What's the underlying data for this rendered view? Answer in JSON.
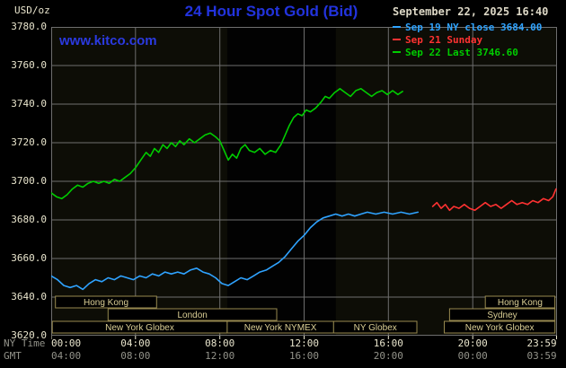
{
  "header": {
    "units_label": "USD/oz",
    "title": "24 Hour Spot Gold (Bid)",
    "watermark": "www.kitco.com",
    "datetime": "September 22, 2025 16:40"
  },
  "colors": {
    "title": "#2233dd",
    "watermark": "#2b3ae0",
    "axis_text": "#e9e5cd",
    "axis_dim": "#93938a",
    "date_text": "#ddd8c6",
    "background": "#000000"
  },
  "legend": [
    {
      "label": "Sep 19 NY close 3684.00",
      "color": "#2fa3ff"
    },
    {
      "label": "Sep 21 Sunday",
      "color": "#ff3232"
    },
    {
      "label": "Sep 22 Last 3746.60",
      "color": "#00cc00"
    }
  ],
  "axes": {
    "ny_time_label": "NY Time",
    "gmt_label": "GMT",
    "x_tick_hours": [
      0,
      4,
      8,
      12,
      16,
      20,
      23.983
    ],
    "x_ticks_ny": [
      "00:00",
      "04:00",
      "08:00",
      "12:00",
      "16:00",
      "20:00",
      "23:59"
    ],
    "x_ticks_gmt": [
      "04:00",
      "08:00",
      "12:00",
      "16:00",
      "20:00",
      "00:00",
      "03:59"
    ],
    "y_ticks": [
      "3780.0",
      "3760.0",
      "3740.0",
      "3720.0",
      "3700.0",
      "3680.0",
      "3660.0",
      "3640.0",
      "3620.0"
    ]
  },
  "chart_data": {
    "type": "line",
    "title": "24 Hour Spot Gold (Bid)",
    "xlabel": "NY Time (hours)",
    "ylabel": "USD/oz",
    "ylim": [
      3620,
      3780
    ],
    "xlim": [
      0,
      24
    ],
    "grid": true,
    "legend_position": "top-right",
    "colors": {
      "plot_bg": "#0d0d06",
      "band": "#020202",
      "grid": "#6e6e6e",
      "tick": "#e9e5cd",
      "session_border": "#97894f",
      "session_text": "#dbcf95"
    },
    "nymex_band_hours": [
      8.35,
      13.5
    ],
    "series": [
      {
        "name": "Sep 19 NY close",
        "close_value": 3684.0,
        "color": "#2fa3ff",
        "points": [
          [
            0,
            3651
          ],
          [
            0.3,
            3649
          ],
          [
            0.6,
            3646
          ],
          [
            0.9,
            3645
          ],
          [
            1.2,
            3646
          ],
          [
            1.5,
            3644
          ],
          [
            1.8,
            3647
          ],
          [
            2.1,
            3649
          ],
          [
            2.4,
            3648
          ],
          [
            2.7,
            3650
          ],
          [
            3,
            3649
          ],
          [
            3.3,
            3651
          ],
          [
            3.6,
            3650
          ],
          [
            3.9,
            3649
          ],
          [
            4.2,
            3651
          ],
          [
            4.5,
            3650
          ],
          [
            4.8,
            3652
          ],
          [
            5.1,
            3651
          ],
          [
            5.4,
            3653
          ],
          [
            5.7,
            3652
          ],
          [
            6,
            3653
          ],
          [
            6.3,
            3652
          ],
          [
            6.6,
            3654
          ],
          [
            6.9,
            3655
          ],
          [
            7.2,
            3653
          ],
          [
            7.5,
            3652
          ],
          [
            7.8,
            3650
          ],
          [
            8.1,
            3647
          ],
          [
            8.4,
            3646
          ],
          [
            8.7,
            3648
          ],
          [
            9,
            3650
          ],
          [
            9.3,
            3649
          ],
          [
            9.6,
            3651
          ],
          [
            9.9,
            3653
          ],
          [
            10.2,
            3654
          ],
          [
            10.5,
            3656
          ],
          [
            10.8,
            3658
          ],
          [
            11.1,
            3661
          ],
          [
            11.4,
            3665
          ],
          [
            11.7,
            3669
          ],
          [
            12,
            3672
          ],
          [
            12.3,
            3676
          ],
          [
            12.6,
            3679
          ],
          [
            12.9,
            3681
          ],
          [
            13.2,
            3682
          ],
          [
            13.5,
            3683
          ],
          [
            13.8,
            3682
          ],
          [
            14.1,
            3683
          ],
          [
            14.4,
            3682
          ],
          [
            14.7,
            3683
          ],
          [
            15,
            3684
          ],
          [
            15.4,
            3683
          ],
          [
            15.8,
            3684
          ],
          [
            16.2,
            3683
          ],
          [
            16.6,
            3684
          ],
          [
            17,
            3683
          ],
          [
            17.4,
            3684
          ]
        ]
      },
      {
        "name": "Sep 21 Sunday",
        "color": "#ff3232",
        "points": [
          [
            18.1,
            3687
          ],
          [
            18.3,
            3689
          ],
          [
            18.5,
            3686
          ],
          [
            18.7,
            3688
          ],
          [
            18.9,
            3685
          ],
          [
            19.1,
            3687
          ],
          [
            19.35,
            3686
          ],
          [
            19.6,
            3688
          ],
          [
            19.85,
            3686
          ],
          [
            20.1,
            3685
          ],
          [
            20.35,
            3687
          ],
          [
            20.6,
            3689
          ],
          [
            20.85,
            3687
          ],
          [
            21.1,
            3688
          ],
          [
            21.35,
            3686
          ],
          [
            21.6,
            3688
          ],
          [
            21.85,
            3690
          ],
          [
            22.1,
            3688
          ],
          [
            22.35,
            3689
          ],
          [
            22.6,
            3688
          ],
          [
            22.85,
            3690
          ],
          [
            23.1,
            3689
          ],
          [
            23.35,
            3691
          ],
          [
            23.6,
            3690
          ],
          [
            23.8,
            3692
          ],
          [
            23.95,
            3696
          ]
        ]
      },
      {
        "name": "Sep 22 Last",
        "last_value": 3746.6,
        "color": "#00cc00",
        "points": [
          [
            0,
            3694
          ],
          [
            0.25,
            3692
          ],
          [
            0.5,
            3691
          ],
          [
            0.75,
            3693
          ],
          [
            1,
            3696
          ],
          [
            1.25,
            3698
          ],
          [
            1.5,
            3697
          ],
          [
            1.75,
            3699
          ],
          [
            2,
            3700
          ],
          [
            2.25,
            3699
          ],
          [
            2.5,
            3700
          ],
          [
            2.75,
            3699
          ],
          [
            3,
            3701
          ],
          [
            3.25,
            3700
          ],
          [
            3.5,
            3702
          ],
          [
            3.75,
            3704
          ],
          [
            4,
            3707
          ],
          [
            4.25,
            3711
          ],
          [
            4.5,
            3715
          ],
          [
            4.7,
            3713
          ],
          [
            4.9,
            3717
          ],
          [
            5.1,
            3715
          ],
          [
            5.3,
            3719
          ],
          [
            5.5,
            3717
          ],
          [
            5.7,
            3720
          ],
          [
            5.9,
            3718
          ],
          [
            6.1,
            3721
          ],
          [
            6.3,
            3719
          ],
          [
            6.55,
            3722
          ],
          [
            6.8,
            3720
          ],
          [
            7.05,
            3722
          ],
          [
            7.3,
            3724
          ],
          [
            7.55,
            3725
          ],
          [
            7.8,
            3723
          ],
          [
            8,
            3721
          ],
          [
            8.2,
            3716
          ],
          [
            8.4,
            3711
          ],
          [
            8.6,
            3714
          ],
          [
            8.8,
            3712
          ],
          [
            9,
            3717
          ],
          [
            9.2,
            3719
          ],
          [
            9.4,
            3716
          ],
          [
            9.65,
            3715
          ],
          [
            9.9,
            3717
          ],
          [
            10.15,
            3714
          ],
          [
            10.4,
            3716
          ],
          [
            10.65,
            3715
          ],
          [
            10.9,
            3719
          ],
          [
            11.1,
            3724
          ],
          [
            11.3,
            3729
          ],
          [
            11.5,
            3733
          ],
          [
            11.7,
            3735
          ],
          [
            11.9,
            3734
          ],
          [
            12.1,
            3737
          ],
          [
            12.3,
            3736
          ],
          [
            12.55,
            3738
          ],
          [
            12.8,
            3741
          ],
          [
            13,
            3744
          ],
          [
            13.2,
            3743
          ],
          [
            13.45,
            3746
          ],
          [
            13.7,
            3748
          ],
          [
            13.95,
            3746
          ],
          [
            14.2,
            3744
          ],
          [
            14.45,
            3747
          ],
          [
            14.7,
            3748
          ],
          [
            14.95,
            3746
          ],
          [
            15.2,
            3744
          ],
          [
            15.45,
            3746
          ],
          [
            15.7,
            3747
          ],
          [
            15.95,
            3745
          ],
          [
            16.2,
            3747
          ],
          [
            16.45,
            3745
          ],
          [
            16.67,
            3746.6
          ]
        ]
      }
    ],
    "sessions": [
      {
        "row": 0,
        "start": 0.2,
        "end": 5.0,
        "label": "Hong Kong"
      },
      {
        "row": 0,
        "start": 20.6,
        "end": 23.9,
        "label": "Hong Kong"
      },
      {
        "row": 1,
        "start": 2.7,
        "end": 10.7,
        "label": "London"
      },
      {
        "row": 1,
        "start": 18.9,
        "end": 23.9,
        "label": "Sydney"
      },
      {
        "row": 2,
        "start": 0.05,
        "end": 8.35,
        "label": "New York Globex"
      },
      {
        "row": 2,
        "start": 8.35,
        "end": 13.4,
        "label": "New York NYMEX"
      },
      {
        "row": 2,
        "start": 13.4,
        "end": 17.35,
        "label": "NY Globex"
      },
      {
        "row": 2,
        "start": 18.65,
        "end": 23.9,
        "label": "New York Globex"
      }
    ]
  }
}
